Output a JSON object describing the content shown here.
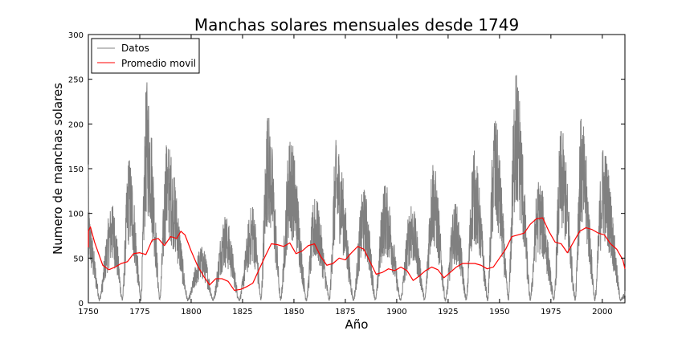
{
  "chart_data": {
    "type": "line",
    "title": "Manchas solares mensuales desde 1749",
    "xlabel": "Año",
    "ylabel": "Numero de manchas solares",
    "xlim": [
      1750,
      2011
    ],
    "ylim": [
      0,
      300
    ],
    "x_ticks": [
      1750,
      1775,
      1800,
      1825,
      1850,
      1875,
      1900,
      1925,
      1950,
      1975,
      2000
    ],
    "y_ticks": [
      0,
      50,
      100,
      150,
      200,
      250,
      300
    ],
    "grid": false,
    "legend_position": "top-left",
    "series": [
      {
        "name": "Datos",
        "color": "#808080",
        "kind": "monthly-raw-envelope",
        "cycles": [
          {
            "min_year": 1755.2,
            "peak_year": 1761.5,
            "peak_value": 107
          },
          {
            "min_year": 1766.5,
            "peak_year": 1769.7,
            "peak_value": 158
          },
          {
            "min_year": 1775.5,
            "peak_year": 1778.4,
            "peak_value": 239
          },
          {
            "min_year": 1784.7,
            "peak_year": 1788.1,
            "peak_value": 174
          },
          {
            "min_year": 1798.3,
            "peak_year": 1805.2,
            "peak_value": 62
          },
          {
            "min_year": 1810.6,
            "peak_year": 1816.4,
            "peak_value": 96
          },
          {
            "min_year": 1823.3,
            "peak_year": 1829.9,
            "peak_value": 107
          },
          {
            "min_year": 1833.9,
            "peak_year": 1837.2,
            "peak_value": 206
          },
          {
            "min_year": 1843.5,
            "peak_year": 1848.1,
            "peak_value": 180
          },
          {
            "min_year": 1856.0,
            "peak_year": 1860.1,
            "peak_value": 116
          },
          {
            "min_year": 1867.2,
            "peak_year": 1870.6,
            "peak_value": 176
          },
          {
            "min_year": 1878.9,
            "peak_year": 1883.9,
            "peak_value": 124
          },
          {
            "min_year": 1889.6,
            "peak_year": 1894.1,
            "peak_value": 130
          },
          {
            "min_year": 1901.7,
            "peak_year": 1907.0,
            "peak_value": 108
          },
          {
            "min_year": 1913.6,
            "peak_year": 1917.6,
            "peak_value": 154
          },
          {
            "min_year": 1923.6,
            "peak_year": 1928.4,
            "peak_value": 109
          },
          {
            "min_year": 1933.8,
            "peak_year": 1937.4,
            "peak_value": 165
          },
          {
            "min_year": 1944.2,
            "peak_year": 1947.5,
            "peak_value": 201
          },
          {
            "min_year": 1954.3,
            "peak_year": 1957.9,
            "peak_value": 254
          },
          {
            "min_year": 1964.9,
            "peak_year": 1968.9,
            "peak_value": 135
          },
          {
            "min_year": 1976.5,
            "peak_year": 1979.9,
            "peak_value": 188
          },
          {
            "min_year": 1986.8,
            "peak_year": 1989.6,
            "peak_value": 200
          },
          {
            "min_year": 1996.4,
            "peak_year": 2000.3,
            "peak_value": 170
          },
          {
            "min_year": 2008.9,
            "peak_year": 2013.0,
            "peak_value": 20
          }
        ]
      },
      {
        "name": "Promedio movil",
        "color": "#ff0000",
        "kind": "smoothed",
        "x": [
          1749,
          1750,
          1751,
          1753,
          1755,
          1757,
          1760,
          1763,
          1766,
          1769,
          1772,
          1775,
          1778,
          1781,
          1784,
          1787,
          1790,
          1793,
          1795,
          1797,
          1800,
          1803,
          1806,
          1809,
          1812,
          1815,
          1818,
          1821,
          1824,
          1827,
          1830,
          1833,
          1836,
          1839,
          1842,
          1845,
          1848,
          1851,
          1854,
          1857,
          1860,
          1863,
          1866,
          1869,
          1872,
          1875,
          1878,
          1881,
          1884,
          1887,
          1890,
          1893,
          1896,
          1899,
          1902,
          1905,
          1908,
          1911,
          1914,
          1917,
          1920,
          1923,
          1926,
          1929,
          1932,
          1935,
          1938,
          1941,
          1944,
          1947,
          1950,
          1953,
          1956,
          1959,
          1962,
          1965,
          1968,
          1971,
          1974,
          1977,
          1980,
          1983,
          1986,
          1989,
          1992,
          1995,
          1998,
          2001,
          2004,
          2007,
          2010,
          2011
        ],
        "y": [
          62,
          80,
          85,
          68,
          55,
          42,
          37,
          40,
          44,
          46,
          55,
          56,
          54,
          70,
          72,
          64,
          74,
          72,
          80,
          76,
          58,
          42,
          30,
          20,
          27,
          27,
          24,
          14,
          15,
          18,
          22,
          37,
          52,
          66,
          65,
          63,
          67,
          55,
          58,
          64,
          66,
          52,
          42,
          44,
          50,
          48,
          56,
          63,
          60,
          46,
          32,
          34,
          38,
          36,
          40,
          36,
          25,
          30,
          36,
          40,
          37,
          28,
          34,
          40,
          44,
          44,
          44,
          42,
          38,
          40,
          50,
          60,
          74,
          76,
          78,
          88,
          94,
          95,
          80,
          68,
          66,
          56,
          68,
          80,
          84,
          82,
          78,
          76,
          66,
          60,
          48,
          38
        ]
      }
    ]
  }
}
